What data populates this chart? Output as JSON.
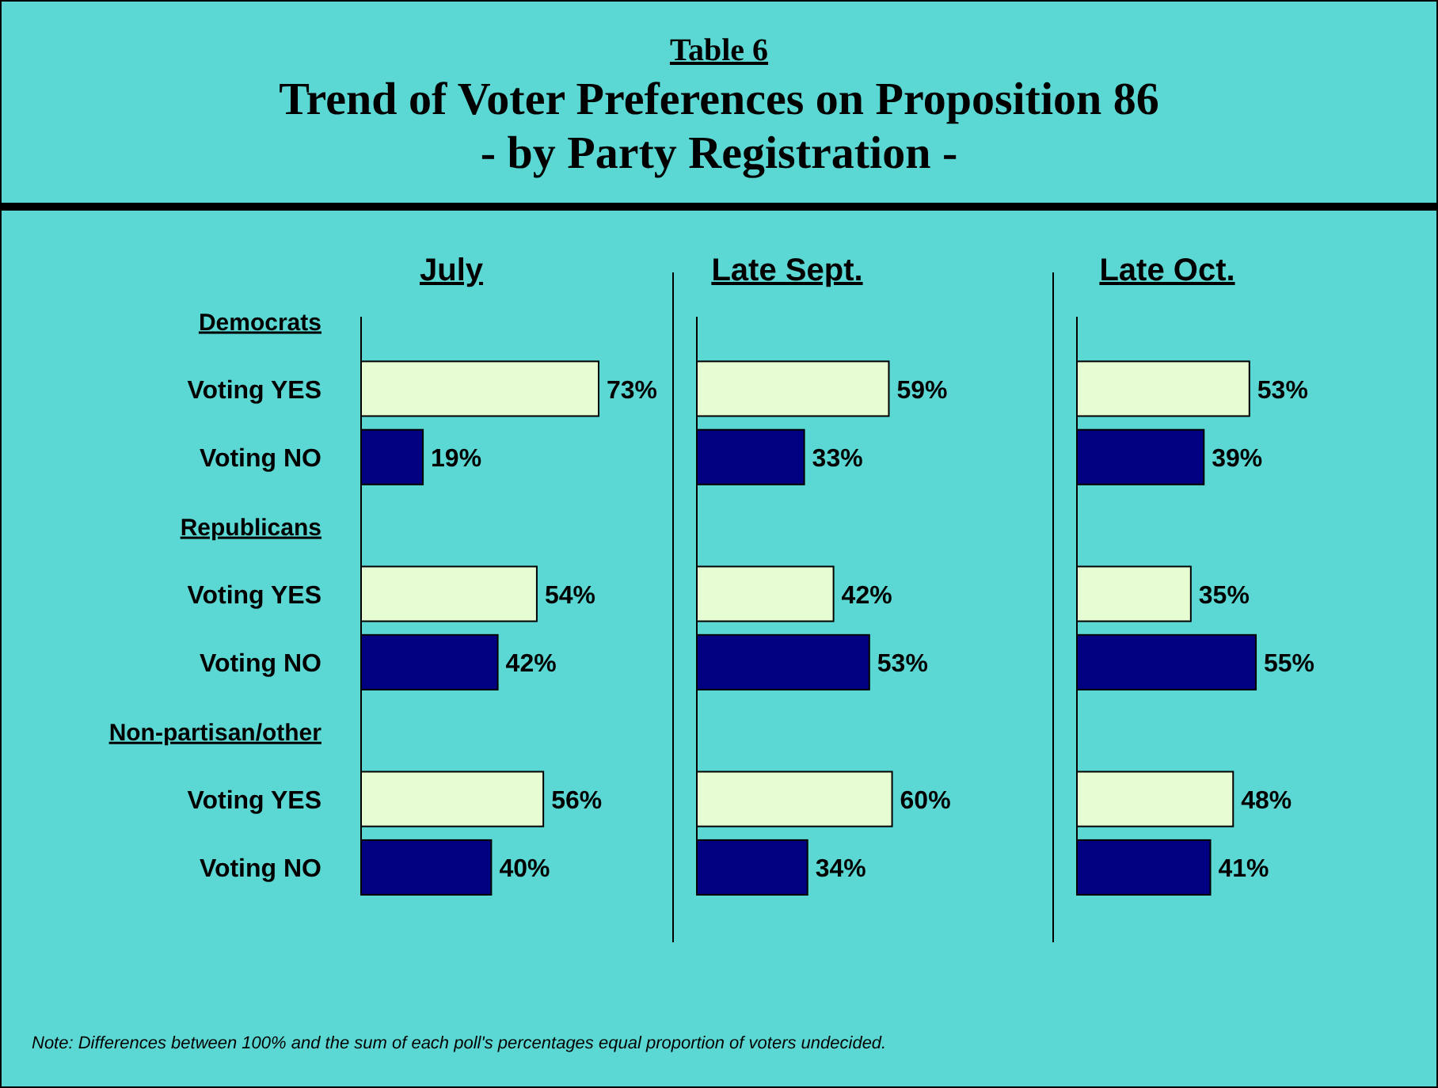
{
  "chart_data": [
    {
      "type": "other",
      "subtitle": "Table 6",
      "title": "Trend of Voter Preferences on Proposition 86\n- by Party Registration -",
      "annotations": [
        "Note: Differences between 100% and the sum of each poll's percentages equal proportion of voters undecided."
      ]
    },
    {
      "type": "bar",
      "orientation": "horizontal",
      "title": "July",
      "categories": [
        "Democrats",
        "Voting YES",
        "Voting NO",
        "Republicans",
        "Voting YES",
        "Voting NO",
        "Non-partisan/other",
        "Voting YES",
        "Voting NO"
      ],
      "values": [
        null,
        73,
        19,
        null,
        54,
        42,
        null,
        56,
        40
      ],
      "value_labels": [
        null,
        "73%",
        "19%",
        null,
        "54%",
        "42%",
        null,
        "56%",
        "40%"
      ],
      "colors": [
        null,
        "#e6fcd2",
        "#000080",
        null,
        "#e6fcd2",
        "#000080",
        null,
        "#e6fcd2",
        "#000080"
      ]
    },
    {
      "type": "bar",
      "orientation": "horizontal",
      "title": "Late Sept.",
      "categories": [
        null,
        null,
        null,
        null,
        null,
        null,
        null,
        null,
        null
      ],
      "values": [
        null,
        59,
        33,
        null,
        42,
        53,
        null,
        60,
        34
      ],
      "value_labels": [
        null,
        "59%",
        "33%",
        null,
        "42%",
        "53%",
        null,
        "60%",
        "34%"
      ],
      "colors": [
        null,
        "#e6fcd2",
        "#000080",
        null,
        "#e6fcd2",
        "#000080",
        null,
        "#e6fcd2",
        "#000080"
      ]
    },
    {
      "type": "bar",
      "orientation": "horizontal",
      "title": "Late Oct.",
      "categories": [
        null,
        null,
        null,
        null,
        null,
        null,
        null,
        null,
        null
      ],
      "values": [
        null,
        53,
        39,
        null,
        35,
        55,
        null,
        48,
        41
      ],
      "value_labels": [
        null,
        "53%",
        "39%",
        null,
        "35%",
        "55%",
        null,
        "48%",
        "41%"
      ],
      "colors": [
        null,
        "#e6fcd2",
        "#000080",
        null,
        "#e6fcd2",
        "#000080",
        null,
        "#e6fcd2",
        "#000080"
      ]
    }
  ]
}
